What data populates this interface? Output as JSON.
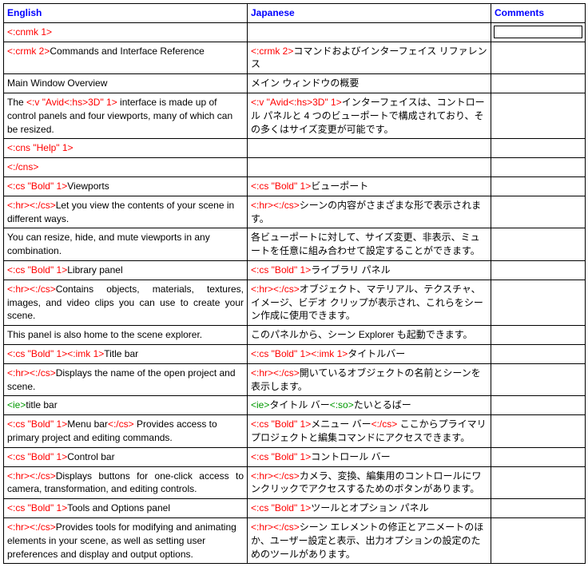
{
  "headers": {
    "en": "English",
    "jp": "Japanese",
    "cm": "Comments"
  },
  "colors": {
    "header": "#0000ff",
    "tag": "#ff0000",
    "ie": "#009900",
    "text": "#000000",
    "border": "#000000"
  },
  "rows": [
    {
      "en": [
        {
          "t": "tag",
          "v": "<:cnmk 1>"
        }
      ],
      "jp": [],
      "cm_input": true
    },
    {
      "en": [
        {
          "t": "tag",
          "v": "<:crmk 2>"
        },
        {
          "t": "txt",
          "v": "Commands and Interface Reference"
        }
      ],
      "jp": [
        {
          "t": "tag",
          "v": "<:crmk 2>"
        },
        {
          "t": "txt",
          "v": "コマンドおよびインターフェイス リファレンス"
        }
      ]
    },
    {
      "en": [
        {
          "t": "txt",
          "v": "Main Window Overview"
        }
      ],
      "jp": [
        {
          "t": "txt",
          "v": "メイン ウィンドウの概要"
        }
      ]
    },
    {
      "en": [
        {
          "t": "txt",
          "v": "The "
        },
        {
          "t": "tag",
          "v": "<:v \"Avid<:hs>3D\" 1>"
        },
        {
          "t": "txt",
          "v": " interface is made up of control panels and four viewports, many of which can be resized."
        }
      ],
      "jp": [
        {
          "t": "tag",
          "v": "<:v \"Avid<:hs>3D\" 1>"
        },
        {
          "t": "txt",
          "v": "インターフェイスは、コントロール パネルと 4 つのビューポートで構成されており、その多くはサイズ変更が可能です。"
        }
      ]
    },
    {
      "en": [
        {
          "t": "tag",
          "v": "<:cns \"Help\" 1>"
        }
      ],
      "jp": []
    },
    {
      "en": [
        {
          "t": "tag",
          "v": "<:/cns>"
        }
      ],
      "jp": []
    },
    {
      "en": [
        {
          "t": "tag",
          "v": "<:cs \"Bold\" 1>"
        },
        {
          "t": "txt",
          "v": "Viewports"
        }
      ],
      "jp": [
        {
          "t": "tag",
          "v": "<:cs \"Bold\" 1>"
        },
        {
          "t": "txt",
          "v": "ビューポート"
        }
      ]
    },
    {
      "en": [
        {
          "t": "tag",
          "v": "<:hr><:/cs>"
        },
        {
          "t": "txt",
          "v": "Let you view the contents of your scene in different ways."
        }
      ],
      "jp": [
        {
          "t": "tag",
          "v": "<:hr><:/cs>"
        },
        {
          "t": "txt",
          "v": "シーンの内容がさまざまな形で表示されます。"
        }
      ]
    },
    {
      "en": [
        {
          "t": "txt",
          "v": "You can resize, hide, and mute viewports in any combination."
        }
      ],
      "jp": [
        {
          "t": "txt",
          "v": "各ビューポートに対して、サイズ変更、非表示、ミュートを任意に組み合わせて設定することができます。"
        }
      ]
    },
    {
      "en": [
        {
          "t": "tag",
          "v": "<:cs \"Bold\" 1>"
        },
        {
          "t": "txt",
          "v": "Library panel"
        }
      ],
      "jp": [
        {
          "t": "tag",
          "v": "<:cs \"Bold\" 1>"
        },
        {
          "t": "txt",
          "v": "ライブラリ パネル"
        }
      ]
    },
    {
      "en_just": true,
      "en": [
        {
          "t": "tag",
          "v": "<:hr><:/cs>"
        },
        {
          "t": "txt",
          "v": "Contains objects, materials, textures, images, and video clips you can use to create your scene."
        }
      ],
      "jp": [
        {
          "t": "tag",
          "v": "<:hr><:/cs>"
        },
        {
          "t": "txt",
          "v": "オブジェクト、マテリアル、テクスチャ、イメージ、ビデオ クリップが表示され、これらをシーン作成に使用できます。"
        }
      ]
    },
    {
      "en": [
        {
          "t": "txt",
          "v": "This panel is also home to the scene explorer."
        }
      ],
      "jp": [
        {
          "t": "txt",
          "v": "このパネルから、シーン Explorer も起動できます。"
        }
      ]
    },
    {
      "en": [
        {
          "t": "tag",
          "v": "<:cs \"Bold\" 1><:imk 1>"
        },
        {
          "t": "txt",
          "v": "Title bar"
        }
      ],
      "jp": [
        {
          "t": "tag",
          "v": "<:cs \"Bold\" 1><:imk 1>"
        },
        {
          "t": "txt",
          "v": "タイトルバー"
        }
      ]
    },
    {
      "en": [
        {
          "t": "tag",
          "v": "<:hr><:/cs>"
        },
        {
          "t": "txt",
          "v": "Displays the name of the open project and scene."
        }
      ],
      "jp": [
        {
          "t": "tag",
          "v": "<:hr><:/cs>"
        },
        {
          "t": "txt",
          "v": "開いているオブジェクトの名前とシーンを表示します。"
        }
      ]
    },
    {
      "en": [
        {
          "t": "ie",
          "v": "<ie>"
        },
        {
          "t": "txt",
          "v": "title bar"
        }
      ],
      "jp": [
        {
          "t": "ie",
          "v": "<ie>"
        },
        {
          "t": "txt",
          "v": "タイトル バー"
        },
        {
          "t": "ie",
          "v": "<:so>"
        },
        {
          "t": "txt",
          "v": "たいとるばー"
        }
      ]
    },
    {
      "en": [
        {
          "t": "tag",
          "v": "<:cs \"Bold\" 1>"
        },
        {
          "t": "txt",
          "v": "Menu bar"
        },
        {
          "t": "tag",
          "v": "<:/cs>"
        },
        {
          "t": "txt",
          "v": " Provides access to primary project and editing commands."
        }
      ],
      "jp": [
        {
          "t": "tag",
          "v": "<:cs \"Bold\" 1>"
        },
        {
          "t": "txt",
          "v": "メニュー バー"
        },
        {
          "t": "tag",
          "v": "<:/cs>"
        },
        {
          "t": "txt",
          "v": " ここからプライマリ プロジェクトと編集コマンドにアクセスできます。"
        }
      ]
    },
    {
      "en": [
        {
          "t": "tag",
          "v": "<:cs \"Bold\" 1>"
        },
        {
          "t": "txt",
          "v": "Control bar"
        }
      ],
      "jp": [
        {
          "t": "tag",
          "v": "<:cs \"Bold\" 1>"
        },
        {
          "t": "txt",
          "v": "コントロール バー"
        }
      ]
    },
    {
      "en_just": true,
      "en": [
        {
          "t": "tag",
          "v": "<:hr><:/cs>"
        },
        {
          "t": "txt",
          "v": "Displays buttons for one-click access to camera, transformation, and editing controls."
        }
      ],
      "jp": [
        {
          "t": "tag",
          "v": "<:hr><:/cs>"
        },
        {
          "t": "txt",
          "v": "カメラ、変換、編集用のコントロールにワンクリックでアクセスするためのボタンがあります。"
        }
      ]
    },
    {
      "en": [
        {
          "t": "tag",
          "v": "<:cs \"Bold\" 1>"
        },
        {
          "t": "txt",
          "v": "Tools and Options panel"
        }
      ],
      "jp": [
        {
          "t": "tag",
          "v": "<:cs \"Bold\" 1>"
        },
        {
          "t": "txt",
          "v": "ツールとオプション パネル"
        }
      ]
    },
    {
      "en": [
        {
          "t": "tag",
          "v": "<:hr><:/cs>"
        },
        {
          "t": "txt",
          "v": "Provides tools for modifying and animating elements in your scene, as well as setting user preferences and display and output options."
        }
      ],
      "jp": [
        {
          "t": "tag",
          "v": "<:hr><:/cs>"
        },
        {
          "t": "txt",
          "v": "シーン エレメントの修正とアニメートのほか、ユーザー設定と表示、出力オプションの設定のためのツールがあります。"
        }
      ]
    }
  ]
}
